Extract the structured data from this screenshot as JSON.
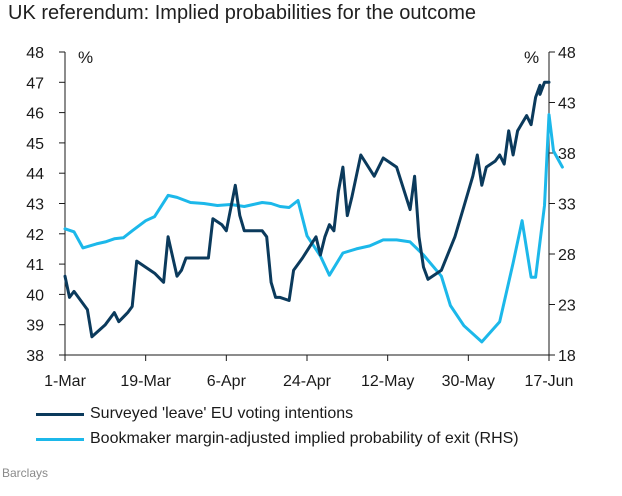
{
  "chart_data": {
    "type": "line",
    "title": "UK referendum: Implied probabilities for the outcome",
    "source": "Barclays",
    "x_ticks": [
      "1-Mar",
      "19-Mar",
      "6-Apr",
      "24-Apr",
      "12-May",
      "30-May",
      "17-Jun"
    ],
    "x_range": [
      "1-Mar",
      "17-Jun"
    ],
    "left_axis": {
      "unit": "%",
      "range": [
        38,
        48
      ],
      "ticks": [
        "38",
        "39",
        "40",
        "41",
        "42",
        "43",
        "44",
        "45",
        "46",
        "47",
        "48"
      ]
    },
    "right_axis": {
      "unit": "%",
      "range": [
        18,
        48
      ],
      "ticks": [
        "18",
        "23",
        "28",
        "33",
        "38",
        "43",
        "48"
      ]
    },
    "grid": false,
    "legend_position": "bottom",
    "series": [
      {
        "name": "Surveyed 'leave' EU voting intentions",
        "axis": "left",
        "color": "#0b3a5c",
        "points": [
          [
            "1-Mar",
            40.6
          ],
          [
            "2-Mar",
            39.9
          ],
          [
            "3-Mar",
            40.1
          ],
          [
            "6-Mar",
            39.5
          ],
          [
            "7-Mar",
            38.6
          ],
          [
            "10-Mar",
            39.0
          ],
          [
            "12-Mar",
            39.4
          ],
          [
            "13-Mar",
            39.1
          ],
          [
            "15-Mar",
            39.4
          ],
          [
            "16-Mar",
            39.6
          ],
          [
            "17-Mar",
            41.1
          ],
          [
            "21-Mar",
            40.7
          ],
          [
            "23-Mar",
            40.4
          ],
          [
            "24-Mar",
            41.9
          ],
          [
            "26-Mar",
            40.6
          ],
          [
            "27-Mar",
            40.8
          ],
          [
            "28-Mar",
            41.2
          ],
          [
            "1-Apr",
            41.2
          ],
          [
            "2-Apr",
            41.2
          ],
          [
            "3-Apr",
            42.5
          ],
          [
            "5-Apr",
            42.3
          ],
          [
            "6-Apr",
            42.1
          ],
          [
            "8-Apr",
            43.6
          ],
          [
            "9-Apr",
            42.6
          ],
          [
            "10-Apr",
            42.1
          ],
          [
            "14-Apr",
            42.1
          ],
          [
            "15-Apr",
            41.9
          ],
          [
            "16-Apr",
            40.4
          ],
          [
            "17-Apr",
            39.9
          ],
          [
            "18-Apr",
            39.9
          ],
          [
            "20-Apr",
            39.8
          ],
          [
            "21-Apr",
            40.8
          ],
          [
            "23-Apr",
            41.2
          ],
          [
            "26-Apr",
            41.9
          ],
          [
            "27-Apr",
            41.3
          ],
          [
            "28-Apr",
            41.9
          ],
          [
            "29-Apr",
            42.3
          ],
          [
            "30-Apr",
            42.1
          ],
          [
            "1-May",
            43.4
          ],
          [
            "2-May",
            44.2
          ],
          [
            "3-May",
            42.6
          ],
          [
            "4-May",
            43.2
          ],
          [
            "6-May",
            44.6
          ],
          [
            "9-May",
            43.9
          ],
          [
            "11-May",
            44.5
          ],
          [
            "14-May",
            44.2
          ],
          [
            "17-May",
            42.8
          ],
          [
            "18-May",
            43.9
          ],
          [
            "19-May",
            41.9
          ],
          [
            "20-May",
            40.9
          ],
          [
            "21-May",
            40.5
          ],
          [
            "24-May",
            40.8
          ],
          [
            "27-May",
            41.9
          ],
          [
            "29-May",
            42.9
          ],
          [
            "31-May",
            43.9
          ],
          [
            "1-Jun",
            44.6
          ],
          [
            "2-Jun",
            43.6
          ],
          [
            "3-Jun",
            44.2
          ],
          [
            "5-Jun",
            44.4
          ],
          [
            "6-Jun",
            44.6
          ],
          [
            "7-Jun",
            44.3
          ],
          [
            "8-Jun",
            45.4
          ],
          [
            "9-Jun",
            44.6
          ],
          [
            "10-Jun",
            45.4
          ],
          [
            "12-Jun",
            45.9
          ],
          [
            "13-Jun",
            45.6
          ],
          [
            "14-Jun",
            46.5
          ],
          [
            "15-Jun",
            46.9
          ],
          [
            "15-Jun",
            46.6
          ],
          [
            "16-Jun",
            47.0
          ],
          [
            "17-Jun",
            47.0
          ]
        ]
      },
      {
        "name": "Bookmaker margin-adjusted implied probability of exit (RHS)",
        "axis": "right",
        "color": "#1cb8ea",
        "points": [
          [
            "1-Mar",
            30.5
          ],
          [
            "3-Mar",
            30.2
          ],
          [
            "5-Mar",
            28.6
          ],
          [
            "8-Mar",
            29.0
          ],
          [
            "10-Mar",
            29.2
          ],
          [
            "12-Mar",
            29.5
          ],
          [
            "14-Mar",
            29.6
          ],
          [
            "16-Mar",
            30.3
          ],
          [
            "19-Mar",
            31.3
          ],
          [
            "21-Mar",
            31.7
          ],
          [
            "24-Mar",
            33.8
          ],
          [
            "26-Mar",
            33.6
          ],
          [
            "29-Mar",
            33.1
          ],
          [
            "1-Apr",
            33.0
          ],
          [
            "4-Apr",
            32.8
          ],
          [
            "7-Apr",
            32.9
          ],
          [
            "10-Apr",
            32.7
          ],
          [
            "12-Apr",
            32.9
          ],
          [
            "14-Apr",
            33.1
          ],
          [
            "16-Apr",
            33.0
          ],
          [
            "18-Apr",
            32.7
          ],
          [
            "20-Apr",
            32.6
          ],
          [
            "22-Apr",
            33.3
          ],
          [
            "24-Apr",
            29.8
          ],
          [
            "27-Apr",
            27.8
          ],
          [
            "29-Apr",
            25.9
          ],
          [
            "2-May",
            28.1
          ],
          [
            "5-May",
            28.5
          ],
          [
            "8-May",
            28.8
          ],
          [
            "11-May",
            29.4
          ],
          [
            "14-May",
            29.4
          ],
          [
            "17-May",
            29.2
          ],
          [
            "20-May",
            27.9
          ],
          [
            "24-May",
            25.8
          ],
          [
            "26-May",
            22.9
          ],
          [
            "29-May",
            20.9
          ],
          [
            "2-Jun",
            19.3
          ],
          [
            "6-Jun",
            21.3
          ],
          [
            "9-Jun",
            27.1
          ],
          [
            "11-Jun",
            31.3
          ],
          [
            "13-Jun",
            25.7
          ],
          [
            "14-Jun",
            25.7
          ],
          [
            "16-Jun",
            32.8
          ],
          [
            "17-Jun",
            41.8
          ],
          [
            "18-Jun",
            38.2
          ],
          [
            "20-Jun",
            36.6
          ]
        ]
      }
    ]
  }
}
